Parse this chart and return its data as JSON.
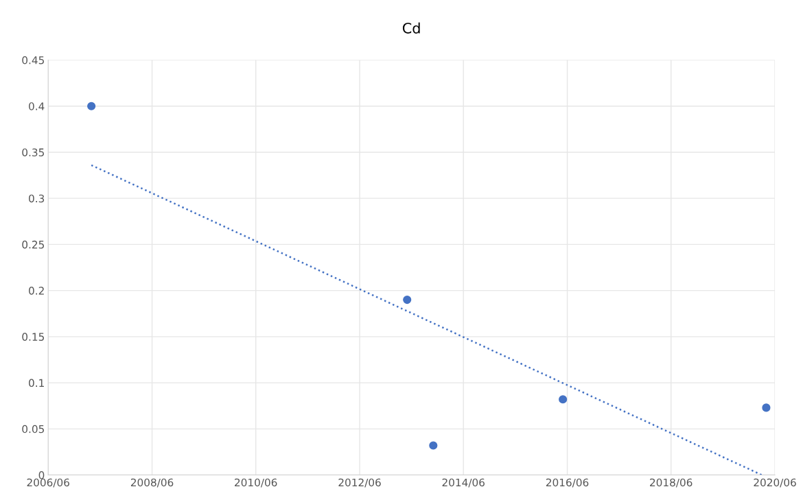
{
  "chart_data": {
    "type": "scatter",
    "title": "Cd",
    "series": [
      {
        "color": "#4472c4",
        "marker": "circle",
        "x": [
          "2007-04-01",
          "2013-05-01",
          "2013-11-01",
          "2016-05-01",
          "2020-04-01"
        ],
        "values": [
          0.4,
          0.19,
          0.032,
          0.082,
          0.073
        ]
      },
      {
        "type": "line",
        "color": "#4472c4",
        "line_style": "dotted",
        "marker": "none",
        "x": [
          "2007-04-01",
          "2020-03-01"
        ],
        "values": [
          0.336,
          0.0
        ]
      }
    ],
    "xlim": [
      "2006-06-01",
      "2020-06-01"
    ],
    "xticks": [
      {
        "value": "2006-06-01",
        "label": "2006/06"
      },
      {
        "value": "2008-06-01",
        "label": "2008/06"
      },
      {
        "value": "2010-06-01",
        "label": "2010/06"
      },
      {
        "value": "2012-06-01",
        "label": "2012/06"
      },
      {
        "value": "2014-06-01",
        "label": "2014/06"
      },
      {
        "value": "2016-06-01",
        "label": "2016/06"
      },
      {
        "value": "2018-06-01",
        "label": "2018/06"
      },
      {
        "value": "2020-06-01",
        "label": "2020/06"
      }
    ],
    "ylim": [
      0,
      0.45
    ],
    "yticks": [
      0,
      0.05,
      0.1,
      0.15,
      0.2,
      0.25,
      0.3,
      0.35,
      0.4,
      0.45
    ],
    "grid": true
  }
}
